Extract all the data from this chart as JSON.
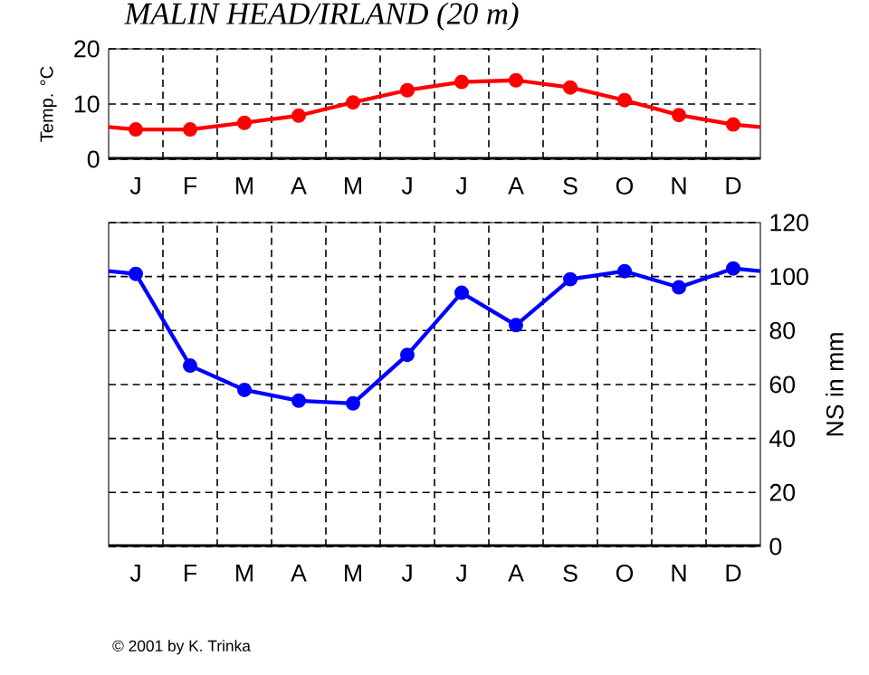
{
  "chart_data": [
    {
      "type": "line",
      "title": "MALIN HEAD/IRLAND (20 m)",
      "ylabel": "Temp. °C",
      "categories": [
        "J",
        "F",
        "M",
        "A",
        "M",
        "J",
        "J",
        "A",
        "S",
        "O",
        "N",
        "D"
      ],
      "series": [
        {
          "color": "#ff0000",
          "values": [
            5.4,
            5.4,
            6.6,
            7.9,
            10.3,
            12.5,
            14.0,
            14.3,
            13.0,
            10.7,
            8.0,
            6.3
          ]
        }
      ],
      "ylim": [
        0,
        20
      ],
      "yticks": [
        0,
        10,
        20
      ],
      "grid": true,
      "marker": "circle",
      "line_style": "solid"
    },
    {
      "type": "line",
      "ylabel": "NS in mm",
      "categories": [
        "J",
        "F",
        "M",
        "A",
        "M",
        "J",
        "J",
        "A",
        "S",
        "O",
        "N",
        "D"
      ],
      "series": [
        {
          "color": "#0000ff",
          "values": [
            101,
            67,
            58,
            54,
            53,
            71,
            94,
            82,
            99,
            102,
            96,
            103
          ]
        }
      ],
      "ylim": [
        0,
        120
      ],
      "yticks": [
        0,
        20,
        40,
        60,
        80,
        100,
        120
      ],
      "grid": true,
      "marker": "circle",
      "line_style": "solid",
      "annotations": [
        "© 2001 by K. Trinka"
      ]
    }
  ]
}
